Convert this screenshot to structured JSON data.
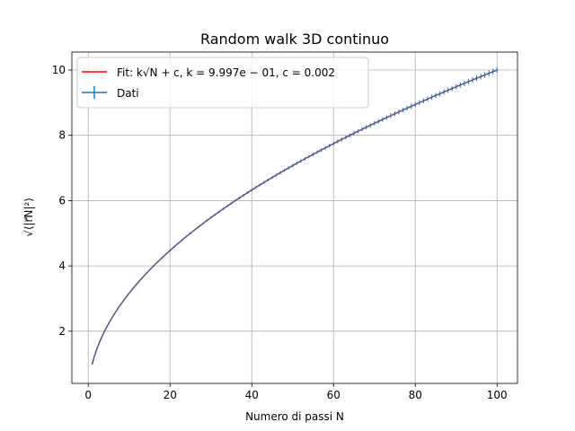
{
  "chart_data": {
    "type": "line",
    "title": "Random walk 3D continuo",
    "xlabel": "Numero di passi N",
    "ylabel": "√⟨|r⃗N|²⟩",
    "xlim": [
      -4,
      105
    ],
    "ylim": [
      0.4,
      10.55
    ],
    "xticks": [
      0,
      20,
      40,
      60,
      80,
      100
    ],
    "yticks": [
      2,
      4,
      6,
      8,
      10
    ],
    "grid": true,
    "legend_position": "top-left",
    "fit_params": {
      "k": 0.9997,
      "c": 0.002
    },
    "series": [
      {
        "name": "Fit: k√N + c, k = 9.997e − 01, c = 0.002",
        "kind": "fit-line",
        "color": "#ff0000",
        "x_range": [
          1,
          100
        ]
      },
      {
        "name": "Dati",
        "kind": "errorbar",
        "color": "#1f77b4",
        "x": [
          1,
          2,
          3,
          4,
          5,
          10,
          15,
          20,
          25,
          30,
          35,
          40,
          45,
          50,
          55,
          60,
          65,
          70,
          75,
          80,
          85,
          90,
          95,
          100
        ],
        "y": [
          1.0,
          1.41,
          1.73,
          2.0,
          2.24,
          3.16,
          3.87,
          4.47,
          5.0,
          5.48,
          5.92,
          6.32,
          6.71,
          7.07,
          7.42,
          7.75,
          8.06,
          8.37,
          8.66,
          8.94,
          9.22,
          9.49,
          9.75,
          10.0
        ]
      }
    ]
  }
}
